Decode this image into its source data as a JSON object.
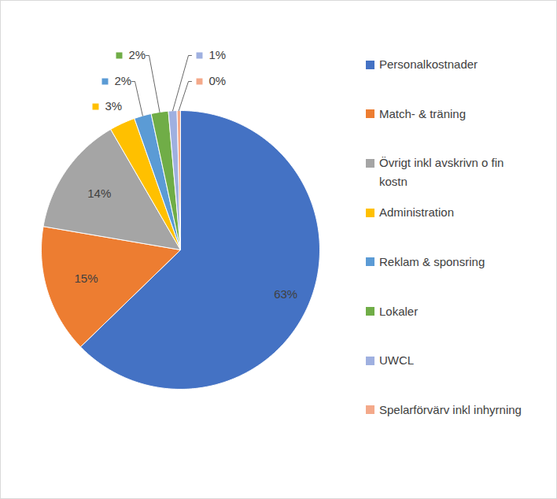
{
  "chart_data": {
    "type": "pie",
    "categories": [
      "Personalkostnader",
      "Match- & träning",
      "Övrigt inkl avskrivn o fin kostn",
      "Administration",
      "Reklam & sponsring",
      "Lokaler",
      "UWCL",
      "Spelarförvärv inkl inhyrning"
    ],
    "values": [
      63,
      15,
      14,
      3,
      2,
      2,
      1,
      0.4
    ],
    "value_labels": [
      "63%",
      "15%",
      "14%",
      "3%",
      "2%",
      "2%",
      "1%",
      "0%"
    ],
    "colors": [
      "#4472c4",
      "#ed7d31",
      "#a5a5a5",
      "#ffc000",
      "#5b9bd5",
      "#70ad47",
      "#9fb0e0",
      "#f4a98a"
    ],
    "data_labels": true,
    "legend": "right"
  }
}
